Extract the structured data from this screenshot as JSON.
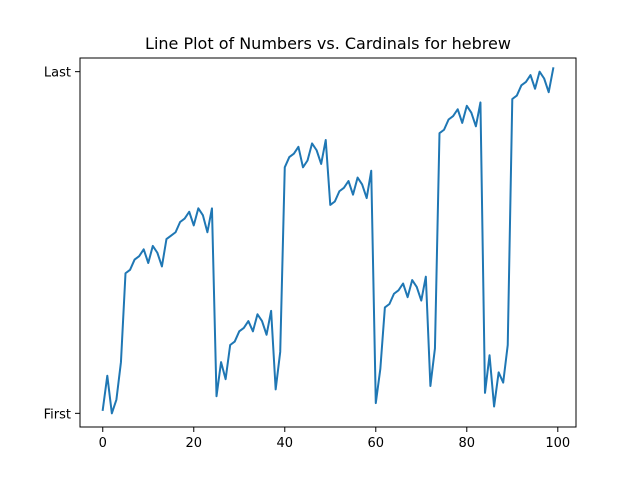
{
  "chart_data": {
    "type": "line",
    "title": "Line Plot of Numbers vs. Cardinals for hebrew",
    "xlabel": "",
    "ylabel": "",
    "xlim": [
      -5,
      104
    ],
    "ylim": [
      -0.04,
      1.04
    ],
    "x_ticks": [
      0,
      20,
      40,
      60,
      80,
      100
    ],
    "y_ticks": [
      {
        "value": 0,
        "label": "First"
      },
      {
        "value": 1,
        "label": "Last"
      }
    ],
    "grid": false,
    "color": "#1f77b4",
    "series": [
      {
        "x": [
          0,
          1,
          2,
          3,
          4,
          5,
          6,
          7,
          8,
          9,
          10,
          11,
          12,
          13,
          14,
          15,
          16,
          17,
          18,
          19,
          20,
          21,
          22,
          23,
          24,
          25,
          26,
          27,
          28,
          29,
          30,
          31,
          32,
          33,
          34,
          35,
          36,
          37,
          38,
          39,
          40,
          41,
          42,
          43,
          44,
          45,
          46,
          47,
          48,
          49,
          50,
          51,
          52,
          53,
          54,
          55,
          56,
          57,
          58,
          59,
          60,
          61,
          62,
          63,
          64,
          65,
          66,
          67,
          68,
          69,
          70,
          71,
          72,
          73,
          74,
          75,
          76,
          77,
          78,
          79,
          80,
          81,
          82,
          83,
          84,
          85,
          86,
          87,
          88,
          89,
          90,
          91,
          92,
          93,
          94,
          95,
          96,
          97,
          98,
          99
        ],
        "y": [
          0.01,
          0.11,
          0.0,
          0.04,
          0.15,
          0.41,
          0.42,
          0.45,
          0.46,
          0.48,
          0.44,
          0.49,
          0.47,
          0.43,
          0.51,
          0.52,
          0.53,
          0.56,
          0.57,
          0.59,
          0.55,
          0.6,
          0.58,
          0.53,
          0.6,
          0.05,
          0.15,
          0.1,
          0.2,
          0.21,
          0.24,
          0.25,
          0.27,
          0.24,
          0.29,
          0.27,
          0.23,
          0.3,
          0.07,
          0.18,
          0.72,
          0.75,
          0.76,
          0.78,
          0.72,
          0.74,
          0.79,
          0.77,
          0.73,
          0.8,
          0.61,
          0.62,
          0.65,
          0.66,
          0.68,
          0.64,
          0.69,
          0.67,
          0.63,
          0.71,
          0.03,
          0.13,
          0.31,
          0.32,
          0.35,
          0.36,
          0.38,
          0.34,
          0.39,
          0.37,
          0.33,
          0.4,
          0.08,
          0.19,
          0.82,
          0.83,
          0.86,
          0.87,
          0.89,
          0.85,
          0.9,
          0.88,
          0.84,
          0.91,
          0.06,
          0.17,
          0.02,
          0.12,
          0.09,
          0.2,
          0.92,
          0.93,
          0.96,
          0.97,
          0.99,
          0.95,
          1.0,
          0.98,
          0.94,
          1.01
        ]
      }
    ]
  }
}
